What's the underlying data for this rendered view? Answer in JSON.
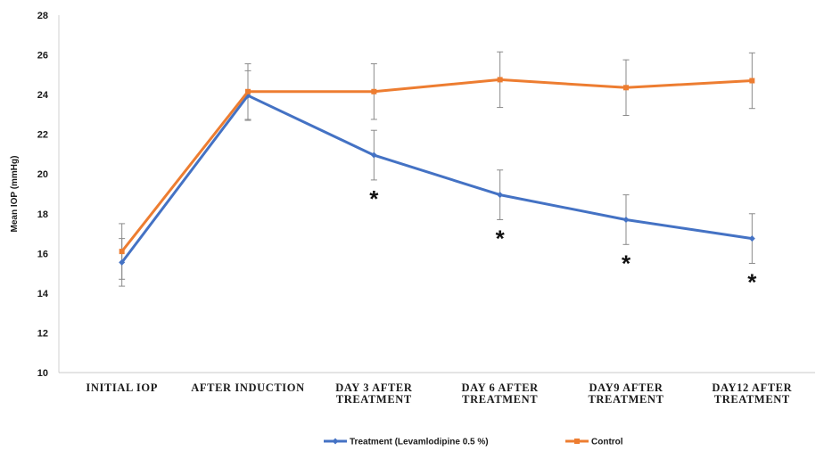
{
  "chart_data": {
    "type": "line",
    "ylabel": "Mean IOP (mmHg)",
    "xlabel": "",
    "ylim": [
      10,
      28
    ],
    "yticks": [
      10,
      12,
      14,
      16,
      18,
      20,
      22,
      24,
      26,
      28
    ],
    "categories": [
      [
        "INITIAL IOP"
      ],
      [
        "AFTER INDUCTION"
      ],
      [
        "DAY 3 AFTER",
        "TREATMENT"
      ],
      [
        "DAY 6 AFTER",
        "TREATMENT"
      ],
      [
        "DAY9 AFTER",
        "TREATMENT"
      ],
      [
        "DAY12 AFTER",
        "TREATMENT"
      ]
    ],
    "grid": false,
    "legend_position": "bottom",
    "series": [
      {
        "name": "Treatment (Levamlodipine 0.5 %)",
        "color": "#4472C4",
        "marker": "diamond",
        "values": [
          15.55,
          23.95,
          20.95,
          18.95,
          17.7,
          16.75
        ],
        "errors": [
          1.2,
          1.25,
          1.25,
          1.25,
          1.25,
          1.25
        ]
      },
      {
        "name": "Control",
        "color": "#ED7D31",
        "marker": "square",
        "values": [
          16.1,
          24.15,
          24.15,
          24.75,
          24.35,
          24.7
        ],
        "errors": [
          1.4,
          1.4,
          1.4,
          1.4,
          1.4,
          1.4
        ]
      }
    ],
    "annotations": [
      {
        "text": "*",
        "category_index": 2
      },
      {
        "text": "*",
        "category_index": 3
      },
      {
        "text": "*",
        "category_index": 4
      },
      {
        "text": "*",
        "category_index": 5
      }
    ]
  }
}
